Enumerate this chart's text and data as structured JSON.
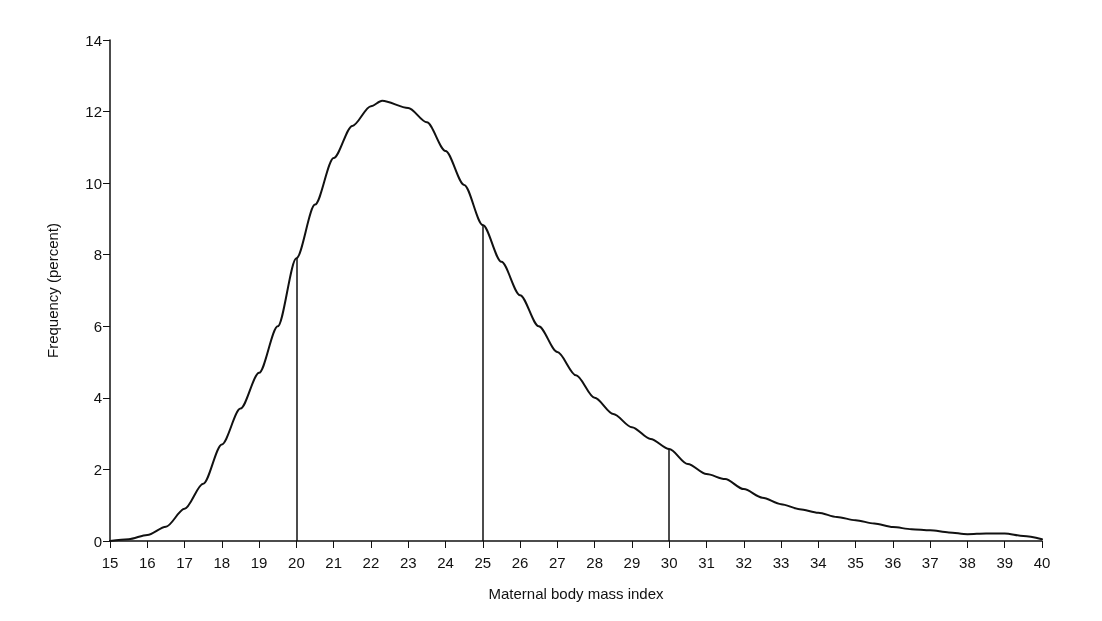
{
  "chart_data": {
    "type": "line",
    "xlabel": "Maternal body mass index",
    "ylabel": "Frequency (percent)",
    "x": [
      15,
      15.5,
      16,
      16.5,
      17,
      17.5,
      18,
      18.5,
      19,
      19.5,
      20,
      20.5,
      21,
      21.5,
      22,
      22.3,
      23,
      23.5,
      24,
      24.5,
      25,
      25.5,
      26,
      26.5,
      27,
      27.5,
      28,
      28.5,
      29,
      29.5,
      30,
      30.5,
      31,
      31.5,
      32,
      32.5,
      33,
      33.5,
      34,
      34.5,
      35,
      35.5,
      36,
      36.5,
      37,
      37.5,
      38,
      38.5,
      39,
      39.5,
      40
    ],
    "series": [
      {
        "color": "#111111",
        "values": [
          0,
          0.05,
          0.17,
          0.4,
          0.9,
          1.6,
          2.7,
          3.7,
          4.7,
          6.0,
          7.9,
          9.4,
          10.7,
          11.6,
          12.15,
          12.3,
          12.1,
          11.7,
          10.9,
          9.95,
          8.83,
          7.8,
          6.87,
          6.0,
          5.28,
          4.63,
          4.0,
          3.55,
          3.18,
          2.85,
          2.57,
          2.15,
          1.87,
          1.73,
          1.45,
          1.21,
          1.03,
          0.89,
          0.79,
          0.67,
          0.58,
          0.49,
          0.39,
          0.33,
          0.3,
          0.24,
          0.19,
          0.21,
          0.21,
          0.14,
          0.05
        ]
      }
    ],
    "xlim": [
      15,
      40
    ],
    "xticks": [
      15,
      16,
      17,
      18,
      19,
      20,
      21,
      22,
      23,
      24,
      25,
      26,
      27,
      28,
      29,
      30,
      31,
      32,
      33,
      34,
      35,
      36,
      37,
      38,
      39,
      40
    ],
    "ylim": [
      0,
      14
    ],
    "yticks": [
      0,
      2,
      4,
      6,
      8,
      10,
      12,
      14
    ],
    "marker": "none",
    "line_style": "solid",
    "ref_lines": [
      {
        "axis": "x",
        "value": 20,
        "color": "#111111"
      },
      {
        "axis": "x",
        "value": 25,
        "color": "#111111"
      },
      {
        "axis": "x",
        "value": 30,
        "color": "#111111"
      }
    ]
  }
}
